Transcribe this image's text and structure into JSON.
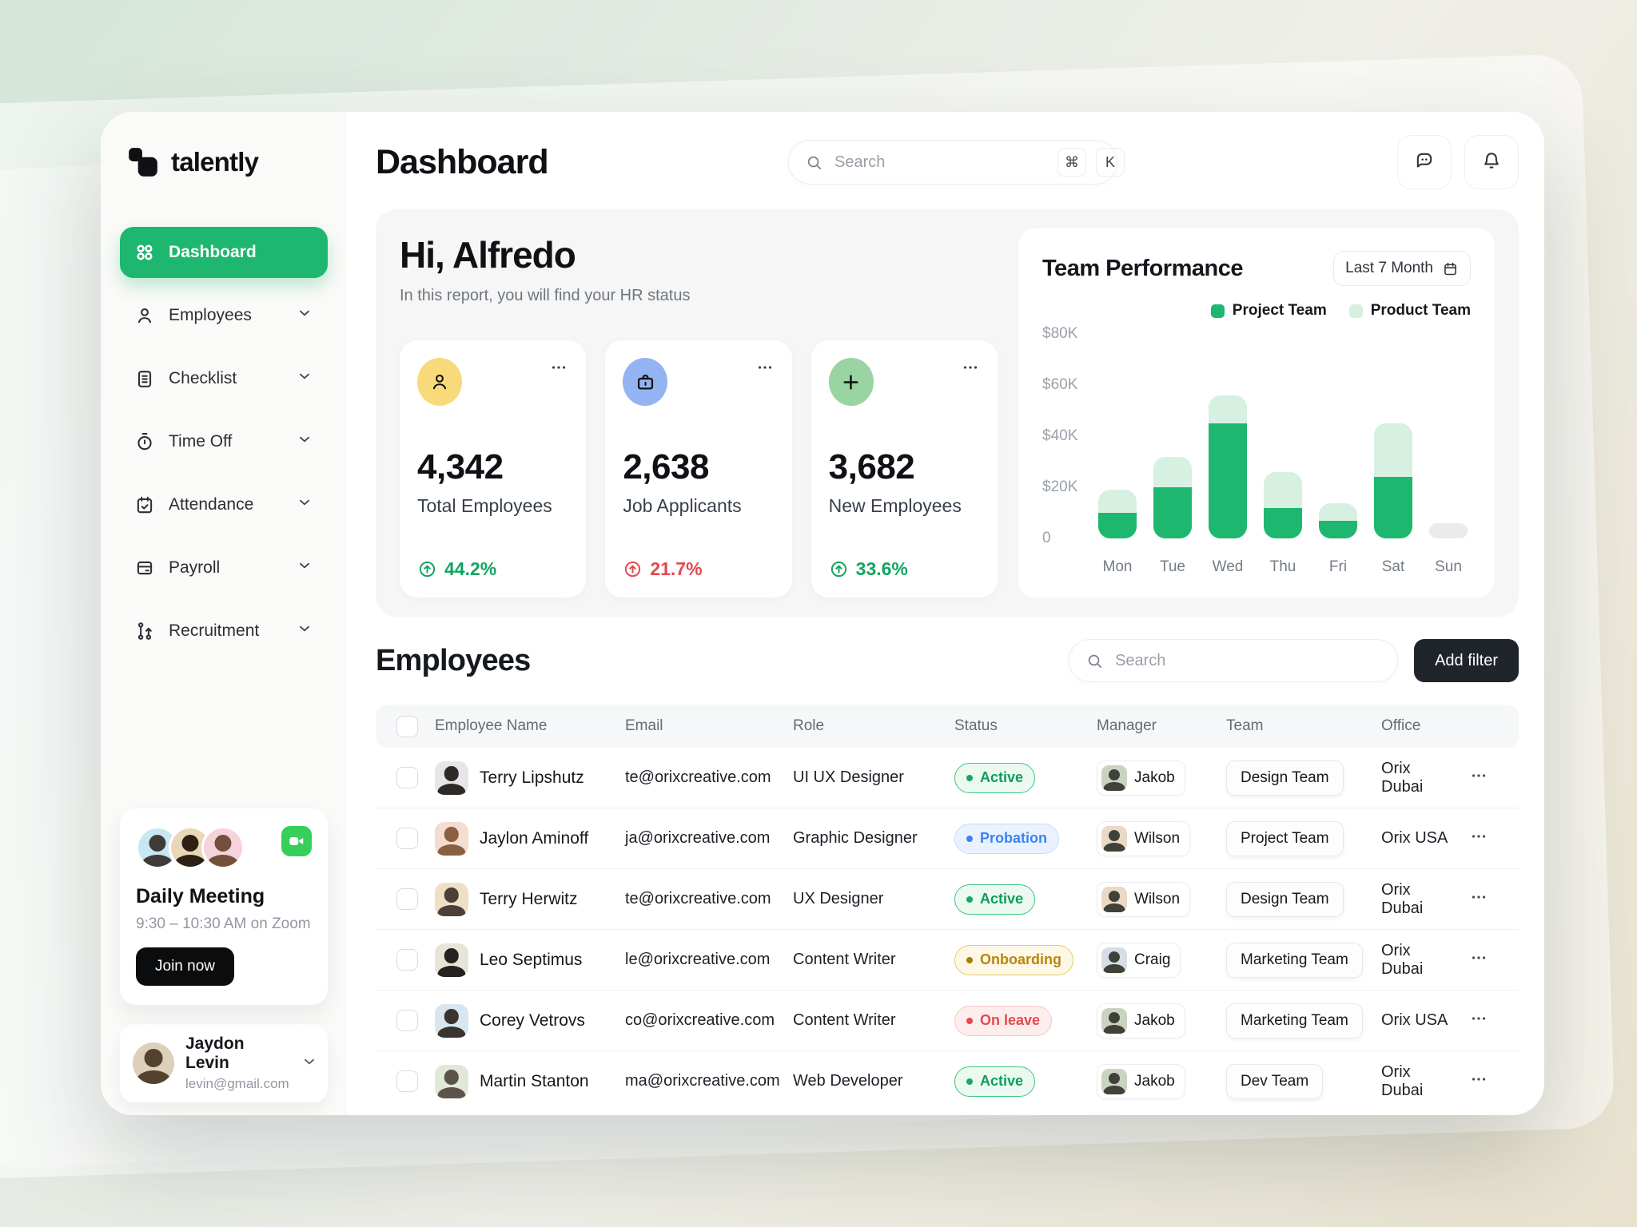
{
  "brand": {
    "name": "talently",
    "accent": "#1eb76f"
  },
  "sidebar": {
    "items": [
      {
        "label": "Dashboard",
        "icon": "dashboard-grid-icon",
        "active": true,
        "chevron": false
      },
      {
        "label": "Employees",
        "icon": "person-icon",
        "active": false,
        "chevron": true
      },
      {
        "label": "Checklist",
        "icon": "clipboard-icon",
        "active": false,
        "chevron": true
      },
      {
        "label": "Time Off",
        "icon": "stopwatch-icon",
        "active": false,
        "chevron": true
      },
      {
        "label": "Attendance",
        "icon": "calendar-check-icon",
        "active": false,
        "chevron": true
      },
      {
        "label": "Payroll",
        "icon": "wallet-icon",
        "active": false,
        "chevron": true
      },
      {
        "label": "Recruitment",
        "icon": "merge-icon",
        "active": false,
        "chevron": true
      }
    ],
    "meeting": {
      "title": "Daily Meeting",
      "time": "9:30 – 10:30 AM on Zoom",
      "join_label": "Join now",
      "video_icon": "video-camera-icon",
      "video_color": "#35cf5a",
      "avatar_colors": [
        "#c9e7f2",
        "#e8d8b8",
        "#f6d2db"
      ],
      "avatar_sils": [
        "#3f3c38",
        "#2d2014",
        "#74503c"
      ]
    },
    "profile": {
      "name": "Jaydon Levin",
      "email": "levin@gmail.com",
      "avatar_color": "#ddd0ba",
      "avatar_sil": "#55422e"
    }
  },
  "header": {
    "title": "Dashboard",
    "search_placeholder": "Search",
    "shortcut_keys": [
      "⌘",
      "K"
    ],
    "actions": [
      {
        "icon": "chat-icon"
      },
      {
        "icon": "bell-icon"
      }
    ]
  },
  "hero": {
    "greeting": "Hi, Alfredo",
    "subtitle": "In this report, you will find your HR status",
    "stats": [
      {
        "value": "4,342",
        "label": "Total Employees",
        "delta": "44.2%",
        "trend": "up",
        "delta_color": "#13a461",
        "icon": "person-icon",
        "icon_bg": "#f8da7a"
      },
      {
        "value": "2,638",
        "label": "Job Applicants",
        "delta": "21.7%",
        "trend": "up",
        "delta_color": "#e5484d",
        "icon": "briefcase-icon",
        "icon_bg": "#93b3f3"
      },
      {
        "value": "3,682",
        "label": "New Employees",
        "delta": "33.6%",
        "trend": "up",
        "delta_color": "#13a461",
        "icon": "plus-icon",
        "icon_bg": "#99d4a2"
      }
    ]
  },
  "chart_data": {
    "type": "bar",
    "stacked": true,
    "title": "Team Performance",
    "period_label": "Last 7 Month",
    "period_icon": "calendar-icon",
    "categories": [
      "Mon",
      "Tue",
      "Wed",
      "Thu",
      "Fri",
      "Sat",
      "Sun"
    ],
    "series": [
      {
        "name": "Project Team",
        "color": "#1eb76f",
        "values_k": [
          10,
          20,
          45,
          12,
          7,
          24,
          0
        ]
      },
      {
        "name": "Product Team",
        "color": "#d6f0e2",
        "values_k": [
          9,
          12,
          11,
          14,
          7,
          21,
          0
        ]
      }
    ],
    "no_data": {
      "category": "Sun",
      "color": "#ebebeb",
      "display_height_k": 6
    },
    "unit": "USD thousands",
    "ylim_k": [
      0,
      80
    ],
    "yticks": [
      "$80K",
      "$60K",
      "$40K",
      "$20K",
      "0"
    ],
    "legend_position": "top-right",
    "grid": false
  },
  "employees_section": {
    "title": "Employees",
    "search_placeholder": "Search",
    "add_filter_label": "Add filter",
    "table": {
      "columns": [
        "Employee Name",
        "Email",
        "Role",
        "Status",
        "Manager",
        "Team",
        "Office"
      ],
      "status_styles": {
        "Active": {
          "bg": "#ebf9f1",
          "border": "#3fc583",
          "text": "#119c5b",
          "dot": "#16a864"
        },
        "Probation": {
          "bg": "#e9f2fe",
          "border": "#c4dcfc",
          "text": "#3c82f6",
          "dot": "#3c82f6"
        },
        "Onboarding": {
          "bg": "#fdf7e6",
          "border": "#eecb5e",
          "text": "#b9860d",
          "dot": "#a87b0a"
        },
        "On leave": {
          "bg": "#fdedec",
          "border": "#f6c9c6",
          "text": "#e5484d",
          "dot": "#e5484d"
        }
      },
      "rows": [
        {
          "name": "Terry Lipshutz",
          "email": "te@orixcreative.com",
          "role": "UI UX Designer",
          "status": "Active",
          "manager": "Jakob",
          "team": "Design Team",
          "office": "Orix Dubai",
          "avatar_color": "#e6e6e8",
          "avatar_sil": "#2e2a28",
          "manager_avatar_color": "#c9d4c0"
        },
        {
          "name": "Jaylon Aminoff",
          "email": "ja@orixcreative.com",
          "role": "Graphic Designer",
          "status": "Probation",
          "manager": "Wilson",
          "team": "Project Team",
          "office": "Orix USA",
          "avatar_color": "#f4dccf",
          "avatar_sil": "#8a5f42",
          "manager_avatar_color": "#ead9c5"
        },
        {
          "name": "Terry Herwitz",
          "email": "te@orixcreative.com",
          "role": "UX Designer",
          "status": "Active",
          "manager": "Wilson",
          "team": "Design Team",
          "office": "Orix Dubai",
          "avatar_color": "#efdfc7",
          "avatar_sil": "#4a4038",
          "manager_avatar_color": "#ead9c5"
        },
        {
          "name": "Leo Septimus",
          "email": "le@orixcreative.com",
          "role": "Content Writer",
          "status": "Onboarding",
          "manager": "Craig",
          "team": "Marketing Team",
          "office": "Orix Dubai",
          "avatar_color": "#e9e4da",
          "avatar_sil": "#26221f",
          "manager_avatar_color": "#d6dde4"
        },
        {
          "name": "Corey Vetrovs",
          "email": "co@orixcreative.com",
          "role": "Content Writer",
          "status": "On leave",
          "manager": "Jakob",
          "team": "Marketing Team",
          "office": "Orix USA",
          "avatar_color": "#d8e6f0",
          "avatar_sil": "#3b342e",
          "manager_avatar_color": "#c9d4c0"
        },
        {
          "name": "Martin Stanton",
          "email": "ma@orixcreative.com",
          "role": "Web Developer",
          "status": "Active",
          "manager": "Jakob",
          "team": "Dev Team",
          "office": "Orix Dubai",
          "avatar_color": "#e0e8d8",
          "avatar_sil": "#5c5448",
          "manager_avatar_color": "#c9d4c0"
        }
      ]
    }
  }
}
